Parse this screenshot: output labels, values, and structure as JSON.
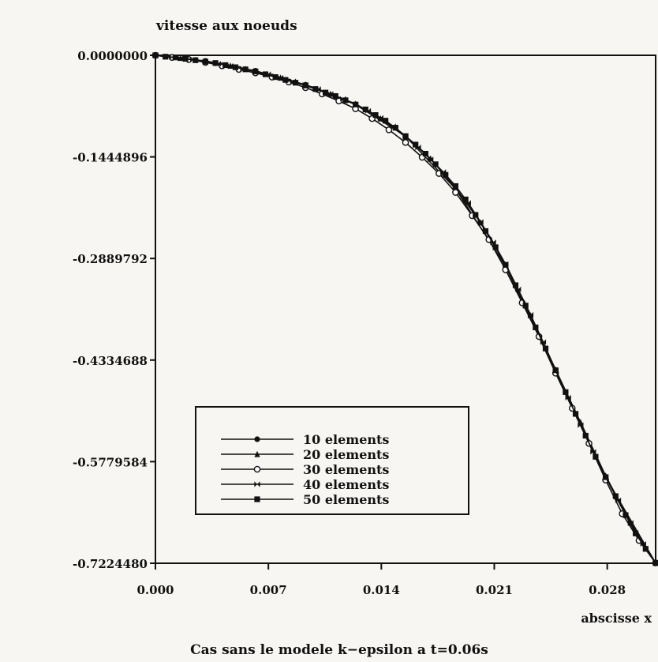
{
  "chart_data": {
    "type": "line",
    "title": "vitesse aux noeuds",
    "xlabel": "abscisse x",
    "caption": "Cas sans le modele k−epsilon a t=0.06s",
    "xlim": [
      0.0,
      0.031
    ],
    "ylim": [
      -0.722448,
      0.0
    ],
    "x_ticks": [
      {
        "value": 0.0,
        "label": "0.000"
      },
      {
        "value": 0.007,
        "label": "0.007"
      },
      {
        "value": 0.014,
        "label": "0.014"
      },
      {
        "value": 0.021,
        "label": "0.021"
      },
      {
        "value": 0.028,
        "label": "0.028"
      }
    ],
    "y_ticks": [
      {
        "value": 0.0,
        "label": "0.0000000"
      },
      {
        "value": -0.1444896,
        "label": "-0.1444896"
      },
      {
        "value": -0.2889792,
        "label": "-0.2889792"
      },
      {
        "value": -0.4334688,
        "label": "-0.4334688"
      },
      {
        "value": -0.5779584,
        "label": "-0.5779584"
      },
      {
        "value": -0.722448,
        "label": "-0.7224480"
      }
    ],
    "legend_position": "bottom-left",
    "grid": false,
    "series": [
      {
        "name": "10 elements",
        "marker": "circle",
        "x": [
          0.0,
          0.0031,
          0.0062,
          0.0093,
          0.0124,
          0.0155,
          0.0186,
          0.0217,
          0.0248,
          0.0279,
          0.031
        ],
        "y": [
          0.0,
          -0.008,
          -0.022,
          -0.042,
          -0.07,
          -0.115,
          -0.19,
          -0.3,
          -0.45,
          -0.6,
          -0.722
        ]
      },
      {
        "name": "20 elements",
        "marker": "triangle",
        "x": [
          0.0,
          0.00155,
          0.0031,
          0.00465,
          0.0062,
          0.00775,
          0.0093,
          0.01085,
          0.0124,
          0.01395,
          0.0155,
          0.01705,
          0.0186,
          0.02015,
          0.0217,
          0.02325,
          0.0248,
          0.02635,
          0.0279,
          0.02945,
          0.031
        ],
        "y": [
          0.0,
          -0.004,
          -0.009,
          -0.015,
          -0.023,
          -0.032,
          -0.042,
          -0.055,
          -0.069,
          -0.09,
          -0.116,
          -0.147,
          -0.189,
          -0.238,
          -0.298,
          -0.37,
          -0.447,
          -0.522,
          -0.598,
          -0.665,
          -0.722
        ]
      },
      {
        "name": "30 elements",
        "marker": "open-circle",
        "x": [
          0.0,
          0.00103,
          0.00207,
          0.0031,
          0.00413,
          0.00517,
          0.0062,
          0.00723,
          0.00827,
          0.0093,
          0.01033,
          0.01137,
          0.0124,
          0.01343,
          0.01447,
          0.0155,
          0.01653,
          0.01757,
          0.0186,
          0.01963,
          0.02067,
          0.0217,
          0.02273,
          0.02377,
          0.0248,
          0.02583,
          0.02687,
          0.0279,
          0.02893,
          0.02997,
          0.031
        ],
        "y": [
          0.0,
          -0.003,
          -0.006,
          -0.01,
          -0.015,
          -0.02,
          -0.025,
          -0.031,
          -0.038,
          -0.046,
          -0.055,
          -0.065,
          -0.076,
          -0.09,
          -0.106,
          -0.124,
          -0.145,
          -0.168,
          -0.195,
          -0.228,
          -0.262,
          -0.305,
          -0.352,
          -0.4,
          -0.452,
          -0.502,
          -0.552,
          -0.604,
          -0.652,
          -0.69,
          -0.722
        ]
      },
      {
        "name": "40 elements",
        "marker": "bowtie",
        "x": [
          0.0,
          0.00078,
          0.00155,
          0.00233,
          0.0031,
          0.00388,
          0.00465,
          0.00543,
          0.0062,
          0.00698,
          0.00775,
          0.00853,
          0.0093,
          0.01008,
          0.01085,
          0.01163,
          0.0124,
          0.01318,
          0.01395,
          0.01473,
          0.0155,
          0.01628,
          0.01705,
          0.01783,
          0.0186,
          0.01938,
          0.02015,
          0.02093,
          0.0217,
          0.02248,
          0.02325,
          0.02403,
          0.0248,
          0.02558,
          0.02635,
          0.02713,
          0.0279,
          0.02868,
          0.02945,
          0.03023,
          0.031
        ],
        "y": [
          0.0,
          -0.002,
          -0.004,
          -0.006,
          -0.009,
          -0.012,
          -0.015,
          -0.019,
          -0.023,
          -0.027,
          -0.032,
          -0.037,
          -0.042,
          -0.048,
          -0.055,
          -0.062,
          -0.07,
          -0.079,
          -0.089,
          -0.101,
          -0.115,
          -0.131,
          -0.148,
          -0.166,
          -0.186,
          -0.21,
          -0.237,
          -0.266,
          -0.297,
          -0.333,
          -0.369,
          -0.408,
          -0.448,
          -0.487,
          -0.526,
          -0.564,
          -0.6,
          -0.633,
          -0.665,
          -0.695,
          -0.722
        ]
      },
      {
        "name": "50 elements",
        "marker": "square",
        "x": [
          0.0,
          0.00062,
          0.00124,
          0.00186,
          0.00248,
          0.0031,
          0.00372,
          0.00434,
          0.00496,
          0.00558,
          0.0062,
          0.00682,
          0.00744,
          0.00806,
          0.00868,
          0.0093,
          0.00992,
          0.01054,
          0.01116,
          0.01178,
          0.0124,
          0.01302,
          0.01364,
          0.01426,
          0.01488,
          0.0155,
          0.01612,
          0.01674,
          0.01736,
          0.01798,
          0.0186,
          0.01922,
          0.01984,
          0.02046,
          0.02108,
          0.0217,
          0.02232,
          0.02294,
          0.02356,
          0.02418,
          0.0248,
          0.02542,
          0.02604,
          0.02666,
          0.02728,
          0.0279,
          0.02852,
          0.02914,
          0.02976,
          0.03038,
          0.031
        ],
        "y": [
          0.0,
          -0.002,
          -0.003,
          -0.005,
          -0.007,
          -0.009,
          -0.011,
          -0.014,
          -0.017,
          -0.02,
          -0.023,
          -0.027,
          -0.031,
          -0.035,
          -0.039,
          -0.043,
          -0.048,
          -0.053,
          -0.058,
          -0.064,
          -0.07,
          -0.077,
          -0.085,
          -0.093,
          -0.103,
          -0.115,
          -0.127,
          -0.14,
          -0.155,
          -0.17,
          -0.186,
          -0.205,
          -0.227,
          -0.25,
          -0.273,
          -0.298,
          -0.327,
          -0.356,
          -0.387,
          -0.417,
          -0.448,
          -0.479,
          -0.51,
          -0.541,
          -0.571,
          -0.6,
          -0.627,
          -0.654,
          -0.68,
          -0.702,
          -0.722
        ]
      }
    ]
  }
}
